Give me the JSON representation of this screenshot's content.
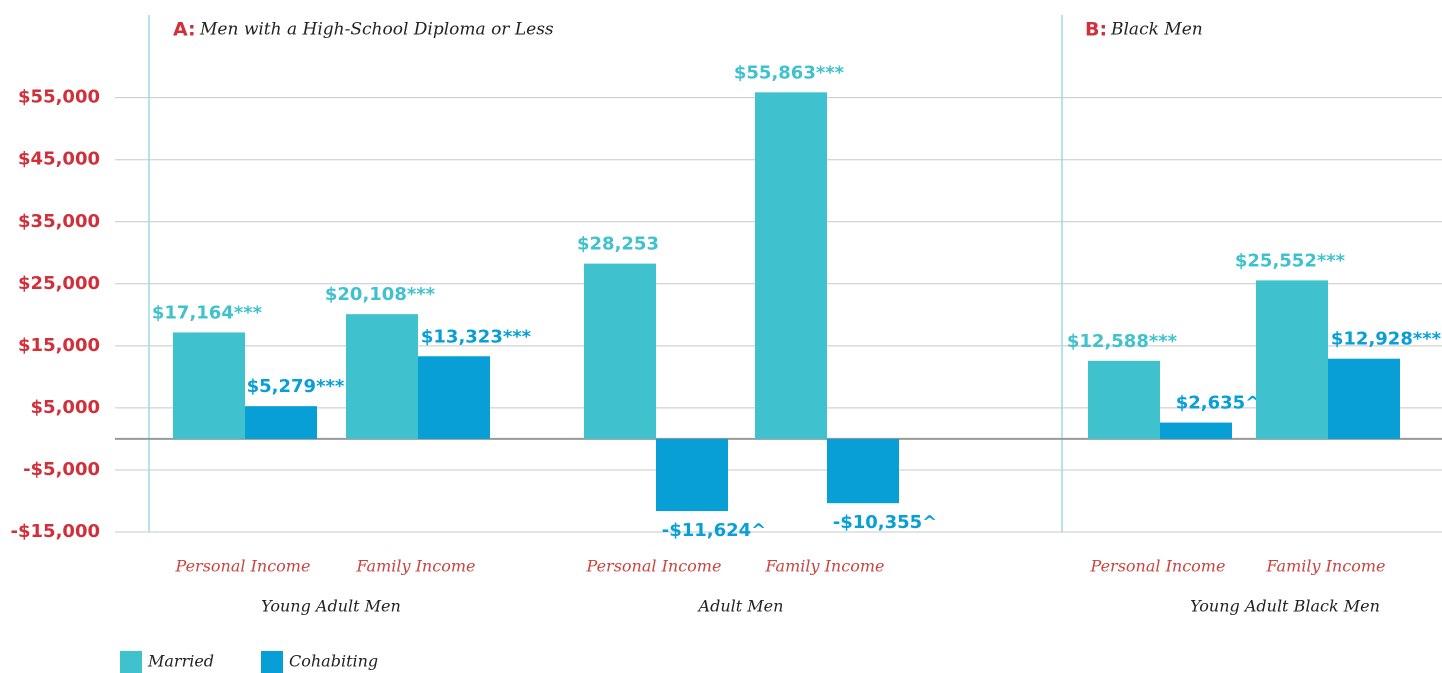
{
  "chart_data": {
    "type": "bar",
    "panels": [
      {
        "letter": "A:",
        "title": "Men with a High-School Diploma or Less"
      },
      {
        "letter": "B:",
        "title": "Black Men"
      }
    ],
    "categories": [
      "Personal Income",
      "Family Income",
      "Personal Income",
      "Family Income",
      "Personal Income",
      "Family Income"
    ],
    "groups": [
      "Young Adult Men",
      "Adult Men",
      "Young Adult Black Men"
    ],
    "series": [
      {
        "name": "Married",
        "color": "#40c2ce",
        "values": [
          17164,
          20108,
          28253,
          55863,
          12588,
          25552
        ],
        "value_labels": [
          "$17,164***",
          "$20,108***",
          "$28,253",
          "$55,863***",
          "$12,588***",
          "$25,552***"
        ]
      },
      {
        "name": "Cohabiting",
        "color": "#079fd6",
        "values": [
          5279,
          13323,
          -11624,
          -10355,
          2635,
          12928
        ],
        "value_labels": [
          "$5,279***^",
          "$13,323***",
          "-$11,624^",
          "-$10,355^",
          "$2,635^",
          "$12,928***"
        ]
      }
    ],
    "ylim": [
      -15000,
      68000
    ],
    "yticks": [
      {
        "value": -15000,
        "label": "-$15,000"
      },
      {
        "value": -5000,
        "label": "-$5,000"
      },
      {
        "value": 5000,
        "label": "$5,000"
      },
      {
        "value": 15000,
        "label": "$15,000"
      },
      {
        "value": 25000,
        "label": "$25,000"
      },
      {
        "value": 35000,
        "label": "$35,000"
      },
      {
        "value": 45000,
        "label": "$45,000"
      },
      {
        "value": 55000,
        "label": "$55,000"
      }
    ],
    "grid": true
  }
}
